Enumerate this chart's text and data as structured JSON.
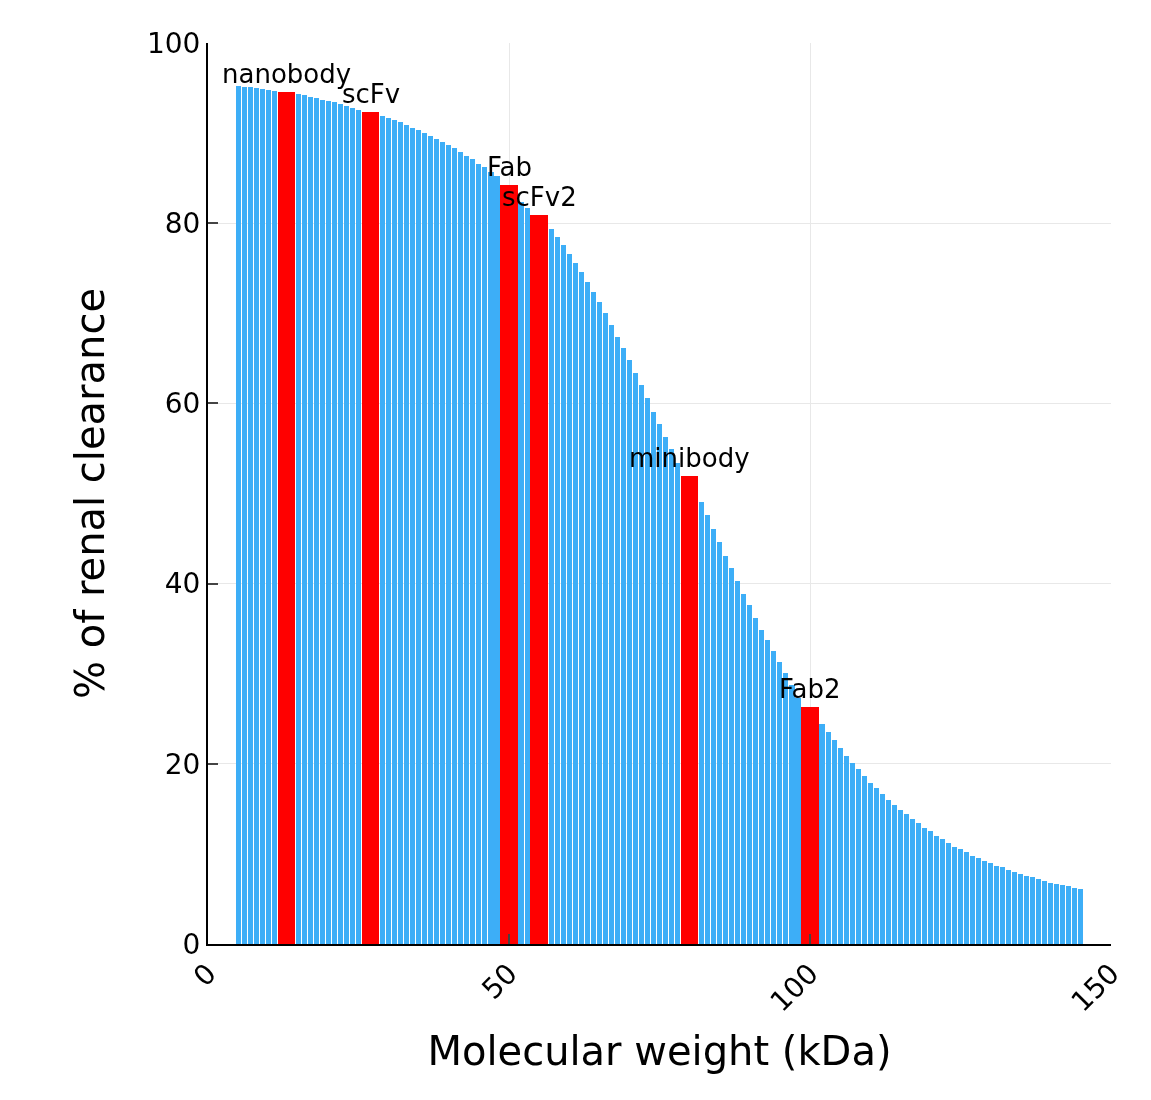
{
  "chart_data": {
    "type": "bar",
    "xlabel": "Molecular weight (kDa)",
    "ylabel": "% of renal clearance",
    "xlim": [
      0,
      150
    ],
    "xticks": [
      0,
      50,
      100,
      150
    ],
    "ylim": [
      0,
      100
    ],
    "yticks": [
      0,
      20,
      40,
      60,
      80,
      100
    ],
    "grid": true,
    "series": [
      {
        "color": "#3daef7",
        "x": [
          5,
          6,
          7,
          8,
          9,
          10,
          11,
          12,
          13,
          14,
          15,
          16,
          17,
          18,
          19,
          20,
          21,
          22,
          23,
          24,
          25,
          26,
          27,
          28,
          29,
          30,
          31,
          32,
          33,
          34,
          35,
          36,
          37,
          38,
          39,
          40,
          41,
          42,
          43,
          44,
          45,
          46,
          47,
          48,
          49,
          50,
          51,
          52,
          53,
          54,
          55,
          56,
          57,
          58,
          59,
          60,
          61,
          62,
          63,
          64,
          65,
          66,
          67,
          68,
          69,
          70,
          71,
          72,
          73,
          74,
          75,
          76,
          77,
          78,
          79,
          80,
          81,
          82,
          83,
          84,
          85,
          86,
          87,
          88,
          89,
          90,
          91,
          92,
          93,
          94,
          95,
          96,
          97,
          98,
          99,
          100,
          101,
          102,
          103,
          104,
          105,
          106,
          107,
          108,
          109,
          110,
          111,
          112,
          113,
          114,
          115,
          116,
          117,
          118,
          119,
          120,
          121,
          122,
          123,
          124,
          125,
          126,
          127,
          128,
          129,
          130,
          131,
          132,
          133,
          134,
          135,
          136,
          137,
          138,
          139,
          140,
          141,
          142,
          143,
          144,
          145
        ],
        "values": [
          95.2,
          95.1,
          95.1,
          95.0,
          94.9,
          94.8,
          94.7,
          null,
          null,
          null,
          94.3,
          94.2,
          94.0,
          93.9,
          93.7,
          93.6,
          93.4,
          93.2,
          93.0,
          92.8,
          92.6,
          null,
          null,
          null,
          91.9,
          91.7,
          91.4,
          91.2,
          90.9,
          90.6,
          90.3,
          90.0,
          89.7,
          89.4,
          89.0,
          88.7,
          88.3,
          87.9,
          87.5,
          87.1,
          86.6,
          86.2,
          85.7,
          85.2,
          null,
          null,
          null,
          82.3,
          81.7,
          null,
          null,
          null,
          79.4,
          78.5,
          77.6,
          76.6,
          75.6,
          74.6,
          73.5,
          72.4,
          71.2,
          70.0,
          68.7,
          67.4,
          66.1,
          64.8,
          63.4,
          62.0,
          60.6,
          59.1,
          57.7,
          56.3,
          54.9,
          53.4,
          null,
          null,
          null,
          49.1,
          47.6,
          46.1,
          44.6,
          43.1,
          41.7,
          40.3,
          38.9,
          37.6,
          36.2,
          34.9,
          33.7,
          32.5,
          31.3,
          30.1,
          28.8,
          27.3,
          null,
          null,
          null,
          24.4,
          23.5,
          22.6,
          21.7,
          20.9,
          20.1,
          19.4,
          18.6,
          17.9,
          17.3,
          16.6,
          16.0,
          15.4,
          14.9,
          14.4,
          13.9,
          13.4,
          12.9,
          12.5,
          12.0,
          11.6,
          11.2,
          10.8,
          10.5,
          10.2,
          9.8,
          9.5,
          9.2,
          9.0,
          8.7,
          8.5,
          8.2,
          8.0,
          7.8,
          7.5,
          7.4,
          7.2,
          7.0,
          6.8,
          6.7,
          6.5,
          6.4,
          6.2,
          6.1
        ]
      },
      {
        "color": "#ff0000",
        "x": [
          13,
          27,
          50,
          55,
          80,
          100
        ],
        "values": [
          94.6,
          92.3,
          84.2,
          80.9,
          51.9,
          26.3
        ]
      }
    ],
    "annotations": [
      {
        "text": "nanobody",
        "x": 13,
        "y": 94.6
      },
      {
        "text": "scFv",
        "x": 27,
        "y": 92.3
      },
      {
        "text": "Fab",
        "x": 50,
        "y": 84.2
      },
      {
        "text": "scFv2",
        "x": 55,
        "y": 80.9
      },
      {
        "text": "minibody",
        "x": 80,
        "y": 51.9
      },
      {
        "text": "Fab2",
        "x": 100,
        "y": 26.3
      }
    ]
  }
}
